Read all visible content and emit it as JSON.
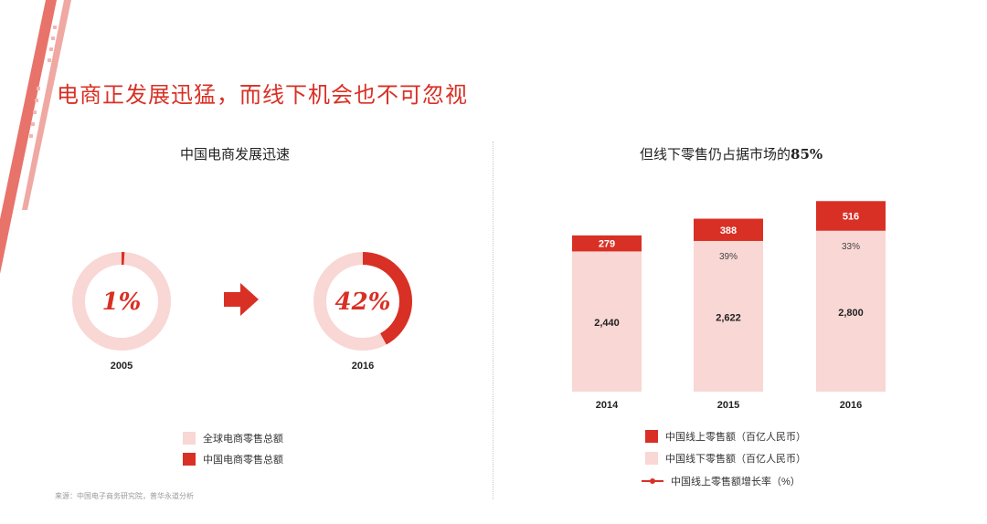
{
  "slide": {
    "title": "电商正发展迅猛，而线下机会也不可忽视",
    "source": "来源：中国电子商务研究院，普华永道分析"
  },
  "colors": {
    "accent": "#d93025",
    "light": "#f8d7d4",
    "text": "#222222",
    "muted": "#9a9a9a"
  },
  "left_panel": {
    "title": "中国电商发展迅速",
    "arrow_icon": "right-arrow-icon",
    "legend": [
      {
        "label": "全球电商零售总额",
        "color": "#f8d7d4"
      },
      {
        "label": "中国电商零售总额",
        "color": "#d93025"
      }
    ]
  },
  "right_panel": {
    "title_main": "但线下零售仍占据市场的",
    "title_bold": "85%",
    "legend": [
      {
        "label": "中国线上零售额（百亿人民币）",
        "color": "#d93025"
      },
      {
        "label": "中国线下零售额（百亿人民币）",
        "color": "#f8d7d4"
      },
      {
        "label": "中国线上零售额增长率（%）",
        "color": "#d93025"
      }
    ]
  },
  "chart_data": [
    {
      "type": "pie",
      "title": "",
      "donuts": [
        {
          "category": "2005",
          "label": "1%",
          "value": 1,
          "series_values": {
            "全球电商零售总额": 99,
            "中国电商零售总额": 1
          }
        },
        {
          "category": "2016",
          "label": "42%",
          "value": 42,
          "series_values": {
            "全球电商零售总额": 58,
            "中国电商零售总额": 42
          }
        }
      ],
      "series": [
        {
          "name": "全球电商零售总额"
        },
        {
          "name": "中国电商零售总额"
        }
      ]
    },
    {
      "type": "bar",
      "stacked": true,
      "title": "",
      "categories": [
        "2014",
        "2015",
        "2016"
      ],
      "series": [
        {
          "name": "中国线上零售额（百亿人民币）",
          "values": [
            279,
            388,
            516
          ],
          "labels": [
            "279",
            "388",
            "516"
          ]
        },
        {
          "name": "中国线下零售额（百亿人民币）",
          "values": [
            2440,
            2622,
            2800
          ],
          "labels": [
            "2,440",
            "2,622",
            "2,800"
          ]
        },
        {
          "name": "中国线上零售额增长率（%）",
          "values": [
            null,
            39,
            33
          ],
          "labels": [
            "",
            "39%",
            "33%"
          ]
        }
      ],
      "ylim": [
        0,
        3400
      ],
      "grid": false,
      "legend_position": "bottom"
    }
  ]
}
